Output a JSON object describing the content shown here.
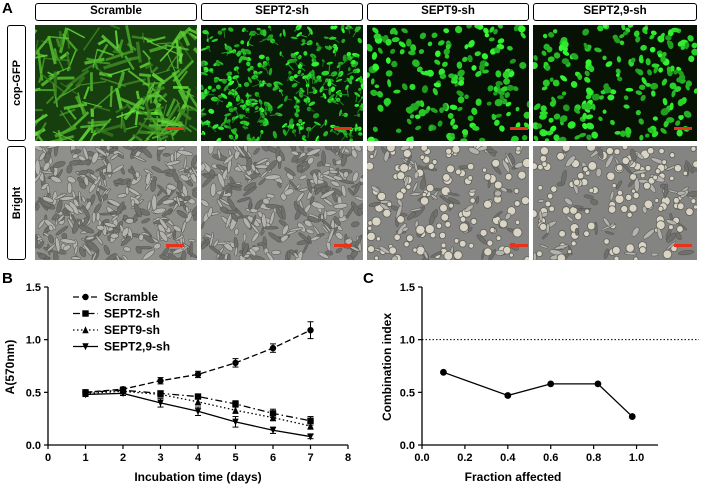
{
  "panels": {
    "a_label": "A",
    "b_label": "B",
    "c_label": "C"
  },
  "columns": [
    "Scramble",
    "SEPT2-sh",
    "SEPT9-sh",
    "SEPT2,9-sh"
  ],
  "rows": [
    "cop-GFP",
    "Bright"
  ],
  "colors": {
    "gfp_green": "#2fd13a",
    "dark_field": "#0a1a08",
    "bright_gray": "#8d8d8a",
    "scale_bar": "#e8331a"
  },
  "chart_data": [
    {
      "type": "line",
      "panel": "B",
      "xlabel": "Incubation time (days)",
      "ylabel": "A(570nm)",
      "xlim": [
        0,
        8
      ],
      "ylim": [
        0,
        1.5
      ],
      "xticks": [
        "0",
        "1",
        "2",
        "3",
        "4",
        "5",
        "6",
        "7",
        "8"
      ],
      "yticks": [
        "0.0",
        "0.5",
        "1.0",
        "1.5"
      ],
      "legend_position": "top-left",
      "x": [
        1,
        2,
        3,
        4,
        5,
        6,
        7
      ],
      "series": [
        {
          "name": "Scramble",
          "marker": "circle",
          "dash": "dashed",
          "values": [
            0.5,
            0.53,
            0.61,
            0.67,
            0.78,
            0.92,
            1.09
          ],
          "errors": [
            0.02,
            0.02,
            0.03,
            0.03,
            0.04,
            0.04,
            0.08
          ]
        },
        {
          "name": "SEPT2-sh",
          "marker": "square",
          "dash": "dashdot",
          "values": [
            0.5,
            0.52,
            0.49,
            0.46,
            0.39,
            0.3,
            0.23
          ],
          "errors": [
            0.02,
            0.02,
            0.02,
            0.02,
            0.03,
            0.04,
            0.04
          ]
        },
        {
          "name": "SEPT9-sh",
          "marker": "triangle-up",
          "dash": "dotted",
          "values": [
            0.49,
            0.51,
            0.48,
            0.41,
            0.33,
            0.26,
            0.18
          ],
          "errors": [
            0.02,
            0.02,
            0.02,
            0.03,
            0.03,
            0.03,
            0.03
          ]
        },
        {
          "name": "SEPT2,9-sh",
          "marker": "triangle-down",
          "dash": "solid",
          "values": [
            0.48,
            0.49,
            0.4,
            0.32,
            0.22,
            0.14,
            0.08
          ],
          "errors": [
            0.02,
            0.02,
            0.04,
            0.04,
            0.05,
            0.03,
            0.02
          ]
        }
      ]
    },
    {
      "type": "line",
      "panel": "C",
      "xlabel": "Fraction affected",
      "ylabel": "Combination index",
      "xlim": [
        0,
        1.1
      ],
      "ylim": [
        0,
        1.5
      ],
      "xticks": [
        "0.0",
        "0.2",
        "0.4",
        "0.6",
        "0.8",
        "1.0"
      ],
      "yticks": [
        "0.0",
        "0.5",
        "1.0",
        "1.5"
      ],
      "reference_line": 1.0,
      "x": [
        0.1,
        0.4,
        0.6,
        0.82,
        0.98
      ],
      "values": [
        0.69,
        0.47,
        0.58,
        0.58,
        0.27
      ]
    }
  ]
}
